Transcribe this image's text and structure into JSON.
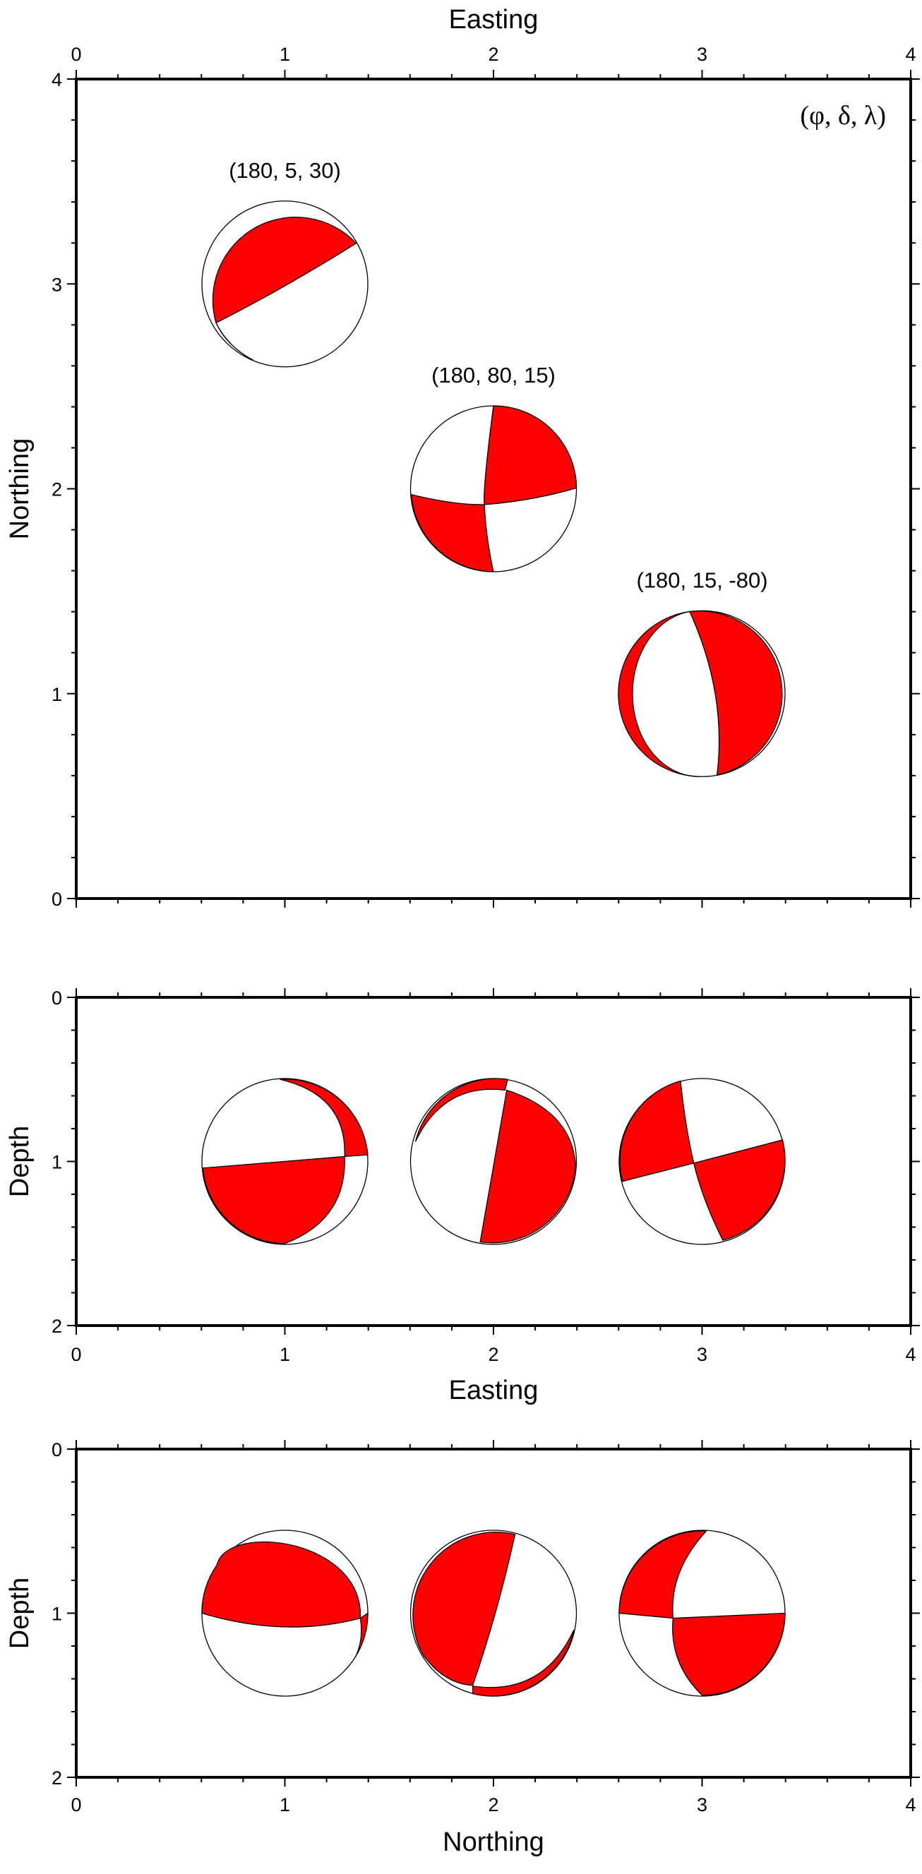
{
  "chart_data": {
    "type": "beachball-plot",
    "fill_color": "#ff0000",
    "legend_label": "(φ, δ, λ)",
    "mechanisms": [
      {
        "label": "(180, 5, 30)",
        "strike": 180,
        "dip": 5,
        "rake": 30,
        "easting": 1,
        "northing": 3,
        "depth": 1
      },
      {
        "label": "(180, 80, 15)",
        "strike": 180,
        "dip": 80,
        "rake": 15,
        "easting": 2,
        "northing": 2,
        "depth": 1
      },
      {
        "label": "(180, 15, -80)",
        "strike": 180,
        "dip": 15,
        "rake": -80,
        "easting": 3,
        "northing": 1,
        "depth": 1
      }
    ],
    "panels": [
      {
        "name": "map-view",
        "xlabel": "Easting",
        "ylabel": "Northing",
        "xlim": [
          0,
          4
        ],
        "ylim": [
          0,
          4
        ],
        "xticks": [
          "0",
          "1",
          "2",
          "3",
          "4"
        ],
        "yticks": [
          "0",
          "1",
          "2",
          "3",
          "4"
        ],
        "y_reversed": false
      },
      {
        "name": "easting-depth-section",
        "xlabel": "Easting",
        "ylabel": "Depth",
        "xlim": [
          0,
          4
        ],
        "ylim": [
          0,
          2
        ],
        "xticks": [
          "0",
          "1",
          "2",
          "3",
          "4"
        ],
        "yticks": [
          "0",
          "1",
          "2"
        ],
        "y_reversed": true
      },
      {
        "name": "northing-depth-section",
        "xlabel": "Northing",
        "ylabel": "Depth",
        "xlim": [
          0,
          4
        ],
        "ylim": [
          0,
          2
        ],
        "xticks": [
          "0",
          "1",
          "2",
          "3",
          "4"
        ],
        "yticks": [
          "0",
          "1",
          "2"
        ],
        "y_reversed": true
      }
    ]
  }
}
